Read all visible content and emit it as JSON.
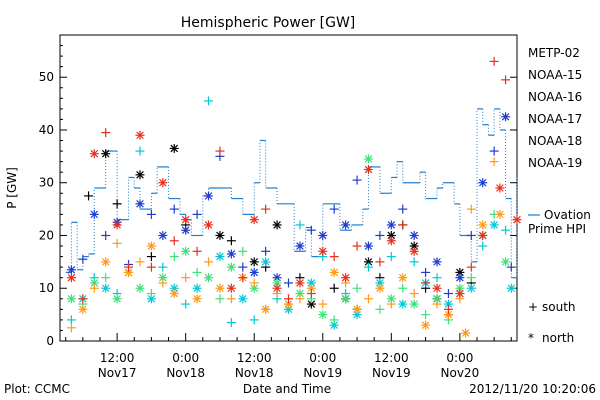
{
  "chart_data": {
    "type": "scatter",
    "title": "Hemispheric Power [GW]",
    "xlabel": "Date and Time",
    "ylabel": "P [GW]",
    "ylim": [
      0,
      58
    ],
    "xlim_hours": [
      -22,
      58
    ],
    "y_ticks": [
      0,
      10,
      20,
      30,
      40,
      50
    ],
    "x_ticks": [
      {
        "hour": -12,
        "time": "12:00",
        "day": "Nov17"
      },
      {
        "hour": 0,
        "time": "0:00",
        "day": "Nov18"
      },
      {
        "hour": 12,
        "time": "12:00",
        "day": "Nov18"
      },
      {
        "hour": 24,
        "time": "0:00",
        "day": "Nov19"
      },
      {
        "hour": 36,
        "time": "12:00",
        "day": "Nov19"
      },
      {
        "hour": 48,
        "time": "0:00",
        "day": "Nov20"
      }
    ],
    "grid": false,
    "legend_position": "right",
    "series": [
      {
        "name": "METP-02",
        "color": "#000000",
        "marker": "mixed",
        "points": [
          [
            -17,
            27.5
          ],
          [
            -14,
            35.5
          ],
          [
            -12,
            26
          ],
          [
            -8,
            31.5
          ],
          [
            -6,
            16
          ],
          [
            -2,
            36.5
          ],
          [
            0,
            22
          ],
          [
            6,
            20
          ],
          [
            8,
            19
          ],
          [
            12,
            15
          ],
          [
            14,
            14
          ],
          [
            16,
            22
          ],
          [
            20,
            12
          ],
          [
            22,
            7
          ],
          [
            26,
            10
          ],
          [
            28,
            8
          ],
          [
            30,
            6
          ],
          [
            32,
            15
          ],
          [
            34,
            12
          ],
          [
            36,
            20
          ],
          [
            38,
            22
          ],
          [
            40,
            18
          ],
          [
            42,
            10
          ],
          [
            44,
            8
          ],
          [
            46,
            5
          ],
          [
            48,
            13
          ],
          [
            50,
            11
          ]
        ]
      },
      {
        "name": "NOAA-15",
        "color": "#1f3ccf",
        "marker": "mixed",
        "points": [
          [
            -20,
            13.5
          ],
          [
            -18,
            15.5
          ],
          [
            -16,
            24
          ],
          [
            -14,
            20
          ],
          [
            -12,
            22.5
          ],
          [
            -10,
            14.5
          ],
          [
            -8,
            26
          ],
          [
            -6,
            24
          ],
          [
            -4,
            20
          ],
          [
            -2,
            25
          ],
          [
            0,
            21
          ],
          [
            2,
            24
          ],
          [
            4,
            27.5
          ],
          [
            6,
            35
          ],
          [
            8,
            16.5
          ],
          [
            10,
            14
          ],
          [
            12,
            13
          ],
          [
            14,
            17
          ],
          [
            16,
            12
          ],
          [
            18,
            11
          ],
          [
            20,
            18
          ],
          [
            22,
            21
          ],
          [
            24,
            20
          ],
          [
            26,
            25
          ],
          [
            28,
            22
          ],
          [
            30,
            30.5
          ],
          [
            32,
            18
          ],
          [
            34,
            20
          ],
          [
            36,
            22
          ],
          [
            38,
            25
          ],
          [
            40,
            20
          ],
          [
            42,
            13
          ],
          [
            44,
            15
          ],
          [
            46,
            9
          ],
          [
            48,
            12
          ],
          [
            50,
            20
          ],
          [
            52,
            30
          ],
          [
            54,
            36
          ],
          [
            56,
            42.5
          ],
          [
            57,
            14
          ]
        ]
      },
      {
        "name": "NOAA-16",
        "color": "#00c8d8",
        "marker": "mixed",
        "points": [
          [
            -20,
            4
          ],
          [
            -18,
            8
          ],
          [
            -16,
            12
          ],
          [
            -14,
            10
          ],
          [
            -12,
            9
          ],
          [
            -10,
            13
          ],
          [
            -8,
            36
          ],
          [
            -6,
            8
          ],
          [
            -4,
            14
          ],
          [
            -2,
            10
          ],
          [
            0,
            7
          ],
          [
            2,
            10
          ],
          [
            4,
            45.5
          ],
          [
            6,
            16
          ],
          [
            8,
            3.5
          ],
          [
            10,
            8
          ],
          [
            12,
            4
          ],
          [
            14,
            15
          ],
          [
            16,
            8
          ],
          [
            18,
            6
          ],
          [
            20,
            22
          ],
          [
            22,
            11
          ],
          [
            24,
            16
          ],
          [
            26,
            3
          ],
          [
            28,
            9
          ],
          [
            30,
            5
          ],
          [
            32,
            14
          ],
          [
            34,
            11
          ],
          [
            36,
            16
          ],
          [
            38,
            7
          ],
          [
            40,
            15
          ],
          [
            42,
            11
          ],
          [
            44,
            12
          ],
          [
            46,
            7
          ],
          [
            48,
            9
          ],
          [
            50,
            10
          ],
          [
            52,
            18
          ],
          [
            54,
            22
          ],
          [
            56,
            21
          ],
          [
            57,
            10
          ]
        ]
      },
      {
        "name": "NOAA-17",
        "color": "#3ee07a",
        "marker": "mixed",
        "points": [
          [
            -20,
            8
          ],
          [
            -18,
            7
          ],
          [
            -16,
            11
          ],
          [
            -14,
            12
          ],
          [
            -12,
            8
          ],
          [
            -10,
            13
          ],
          [
            -8,
            10
          ],
          [
            -6,
            9
          ],
          [
            -4,
            12
          ],
          [
            -2,
            16
          ],
          [
            0,
            17
          ],
          [
            2,
            13
          ],
          [
            4,
            12
          ],
          [
            6,
            8
          ],
          [
            8,
            14
          ],
          [
            10,
            17
          ],
          [
            12,
            10
          ],
          [
            14,
            6
          ],
          [
            16,
            11
          ],
          [
            18,
            7
          ],
          [
            20,
            9
          ],
          [
            22,
            8
          ],
          [
            24,
            5
          ],
          [
            26,
            4
          ],
          [
            28,
            8
          ],
          [
            30,
            10
          ],
          [
            32,
            34.5
          ],
          [
            34,
            6
          ],
          [
            36,
            8
          ],
          [
            38,
            10
          ],
          [
            40,
            7
          ],
          [
            42,
            5
          ],
          [
            44,
            8
          ],
          [
            46,
            4
          ],
          [
            48,
            10
          ],
          [
            50,
            12
          ],
          [
            52,
            20
          ],
          [
            54,
            24
          ],
          [
            56,
            15
          ]
        ]
      },
      {
        "name": "NOAA-18",
        "color": "#ff9a1a",
        "marker": "mixed",
        "points": [
          [
            -20,
            2.5
          ],
          [
            -18,
            6
          ],
          [
            -16,
            10
          ],
          [
            -14,
            15
          ],
          [
            -12,
            18.5
          ],
          [
            -10,
            13
          ],
          [
            -8,
            15
          ],
          [
            -6,
            18
          ],
          [
            -4,
            11
          ],
          [
            -2,
            9
          ],
          [
            0,
            12
          ],
          [
            2,
            8
          ],
          [
            4,
            15
          ],
          [
            6,
            10
          ],
          [
            8,
            8
          ],
          [
            10,
            12
          ],
          [
            12,
            11
          ],
          [
            14,
            6
          ],
          [
            16,
            9
          ],
          [
            18,
            7
          ],
          [
            20,
            8
          ],
          [
            22,
            10
          ],
          [
            24,
            7
          ],
          [
            26,
            13
          ],
          [
            28,
            11
          ],
          [
            30,
            6
          ],
          [
            32,
            8
          ],
          [
            34,
            10
          ],
          [
            36,
            7
          ],
          [
            38,
            12
          ],
          [
            40,
            9
          ],
          [
            42,
            3
          ],
          [
            44,
            7
          ],
          [
            46,
            5
          ],
          [
            48,
            8
          ],
          [
            49,
            1.5
          ],
          [
            50,
            25
          ],
          [
            52,
            22
          ],
          [
            54,
            34
          ],
          [
            55,
            24
          ]
        ]
      },
      {
        "name": "NOAA-19",
        "color": "#e8301c",
        "marker": "mixed",
        "points": [
          [
            -20,
            12
          ],
          [
            -18,
            8
          ],
          [
            -16,
            35.5
          ],
          [
            -14,
            39.5
          ],
          [
            -12,
            22
          ],
          [
            -10,
            14
          ],
          [
            -8,
            39
          ],
          [
            -6,
            14
          ],
          [
            -4,
            30
          ],
          [
            -2,
            19
          ],
          [
            0,
            23
          ],
          [
            2,
            17
          ],
          [
            4,
            22
          ],
          [
            6,
            36
          ],
          [
            8,
            10
          ],
          [
            10,
            12
          ],
          [
            12,
            23
          ],
          [
            14,
            25
          ],
          [
            16,
            10
          ],
          [
            18,
            8
          ],
          [
            20,
            11
          ],
          [
            22,
            9
          ],
          [
            24,
            17
          ],
          [
            26,
            16
          ],
          [
            28,
            12
          ],
          [
            30,
            18
          ],
          [
            32,
            32.5
          ],
          [
            34,
            15
          ],
          [
            36,
            19
          ],
          [
            38,
            22
          ],
          [
            40,
            17
          ],
          [
            42,
            11
          ],
          [
            44,
            10
          ],
          [
            46,
            6
          ],
          [
            48,
            9
          ],
          [
            50,
            14
          ],
          [
            52,
            20
          ],
          [
            54,
            53
          ],
          [
            55,
            29
          ],
          [
            56,
            49.5
          ],
          [
            58,
            23
          ]
        ]
      },
      {
        "name": "Ovation Prime HPI",
        "color": "#1f7fd0",
        "marker": "step",
        "points": [
          [
            -21,
            13
          ],
          [
            -20,
            22.5
          ],
          [
            -19,
            13.5
          ],
          [
            -18,
            16
          ],
          [
            -17,
            16.5
          ],
          [
            -16,
            29
          ],
          [
            -14,
            36
          ],
          [
            -12,
            23
          ],
          [
            -10,
            31
          ],
          [
            -9,
            29
          ],
          [
            -8,
            25
          ],
          [
            -6,
            28
          ],
          [
            -5,
            33
          ],
          [
            -3,
            27
          ],
          [
            -1,
            24
          ],
          [
            0,
            23
          ],
          [
            1,
            20
          ],
          [
            3,
            27.5
          ],
          [
            4,
            29
          ],
          [
            7,
            29
          ],
          [
            8,
            27
          ],
          [
            10,
            24
          ],
          [
            12,
            30
          ],
          [
            13,
            38
          ],
          [
            14,
            29
          ],
          [
            16,
            26
          ],
          [
            19,
            17
          ],
          [
            21,
            21.5
          ],
          [
            22,
            16
          ],
          [
            24,
            26
          ],
          [
            27,
            21
          ],
          [
            29,
            22
          ],
          [
            31,
            25
          ],
          [
            32,
            33
          ],
          [
            34,
            28
          ],
          [
            36,
            31
          ],
          [
            37,
            34
          ],
          [
            38,
            30
          ],
          [
            41,
            32
          ],
          [
            42,
            27
          ],
          [
            44,
            29
          ],
          [
            45,
            30
          ],
          [
            47,
            26
          ],
          [
            48,
            20
          ],
          [
            50,
            15
          ],
          [
            51,
            44
          ],
          [
            52,
            41
          ],
          [
            53,
            39
          ],
          [
            54,
            44
          ],
          [
            55,
            40
          ],
          [
            56,
            27
          ],
          [
            57,
            12
          ],
          [
            58,
            31
          ]
        ]
      }
    ],
    "marker_legend": [
      {
        "symbol": "+",
        "label": "south"
      },
      {
        "symbol": "*",
        "label": "north"
      }
    ]
  },
  "footer": {
    "left": "Plot: CCMC",
    "right": "2012/11/20 10:20:06"
  },
  "legend_labels": [
    "METP-02",
    "NOAA-15",
    "NOAA-16",
    "NOAA-17",
    "NOAA-18",
    "NOAA-19"
  ],
  "ovation_legend": {
    "line1": "Ovation",
    "line2": "Prime HPI"
  }
}
